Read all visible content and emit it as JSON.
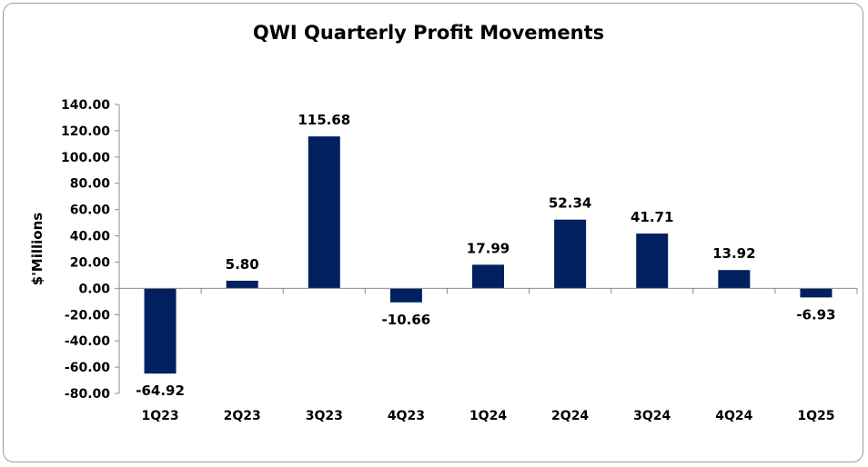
{
  "chart_data": {
    "type": "bar",
    "title": "QWI Quarterly Profit Movements",
    "ylabel": "$'Millions",
    "xlabel": "",
    "categories": [
      "1Q23",
      "2Q23",
      "3Q23",
      "4Q23",
      "1Q24",
      "2Q24",
      "3Q24",
      "4Q24",
      "1Q25"
    ],
    "values": [
      -64.92,
      5.8,
      115.68,
      -10.66,
      17.99,
      52.34,
      41.71,
      13.92,
      -6.93
    ],
    "data_labels": [
      "-64.92",
      "5.80",
      "115.68",
      "-10.66",
      "17.99",
      "52.34",
      "41.71",
      "13.92",
      "-6.93"
    ],
    "ylim": [
      -80,
      140
    ],
    "yticks": [
      140,
      120,
      100,
      80,
      60,
      40,
      20,
      0,
      -20,
      -40,
      -60,
      -80
    ],
    "ytick_labels": [
      "140.00",
      "120.00",
      "100.00",
      "80.00",
      "60.00",
      "40.00",
      "20.00",
      "0.00",
      "-20.00",
      "-40.00",
      "-60.00",
      "-80.00"
    ],
    "grid": false,
    "legend": "none",
    "colors": {
      "bar": "#002060",
      "axis": "#8c8c8c",
      "frame": "#9a9a9a"
    }
  }
}
